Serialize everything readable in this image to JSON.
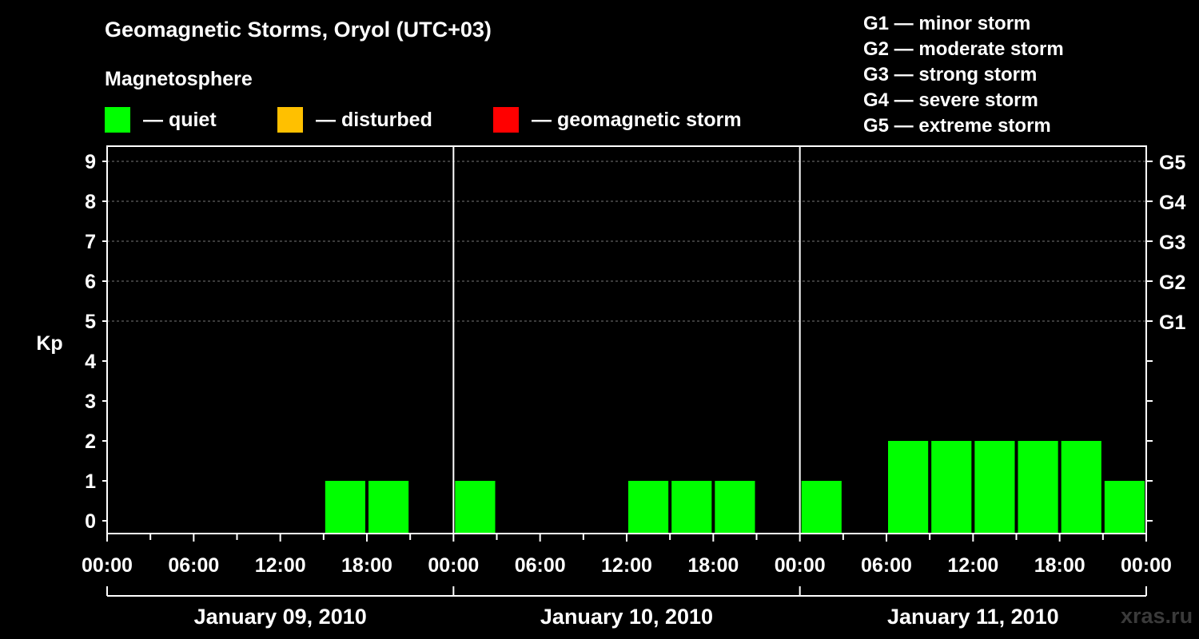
{
  "title": "Geomagnetic Storms, Oryol (UTC+03)",
  "subtitle": "Magnetosphere",
  "legend": [
    {
      "label": "— quiet",
      "color": "#00ff00"
    },
    {
      "label": "— disturbed",
      "color": "#ffc000"
    },
    {
      "label": "— geomagnetic storm",
      "color": "#ff0000"
    }
  ],
  "storm_scale": [
    "G1 — minor storm",
    "G2 — moderate storm",
    "G3 — strong storm",
    "G4 — severe storm",
    "G5 — extreme storm"
  ],
  "watermark": "xras.ru",
  "chart_data": {
    "type": "bar",
    "ylabel": "Kp",
    "ylim": [
      0,
      9
    ],
    "yticks": [
      0,
      1,
      2,
      3,
      4,
      5,
      6,
      7,
      8,
      9
    ],
    "y2ticks": [
      {
        "value": 5,
        "label": "G1"
      },
      {
        "value": 6,
        "label": "G2"
      },
      {
        "value": 7,
        "label": "G3"
      },
      {
        "value": 8,
        "label": "G4"
      },
      {
        "value": 9,
        "label": "G5"
      }
    ],
    "grid": true,
    "days": [
      "January 09, 2010",
      "January 10, 2010",
      "January 11, 2010"
    ],
    "xtick_labels": [
      "00:00",
      "06:00",
      "12:00",
      "18:00",
      "00:00",
      "06:00",
      "12:00",
      "18:00",
      "00:00",
      "06:00",
      "12:00",
      "18:00",
      "00:00"
    ],
    "interval_hours": 3,
    "series": [
      {
        "values": [
          0,
          0,
          0,
          0,
          0,
          1,
          1,
          0,
          1,
          0,
          0,
          0,
          1,
          1,
          1,
          0,
          1,
          0,
          2,
          2,
          2,
          2,
          2,
          1
        ]
      }
    ]
  }
}
